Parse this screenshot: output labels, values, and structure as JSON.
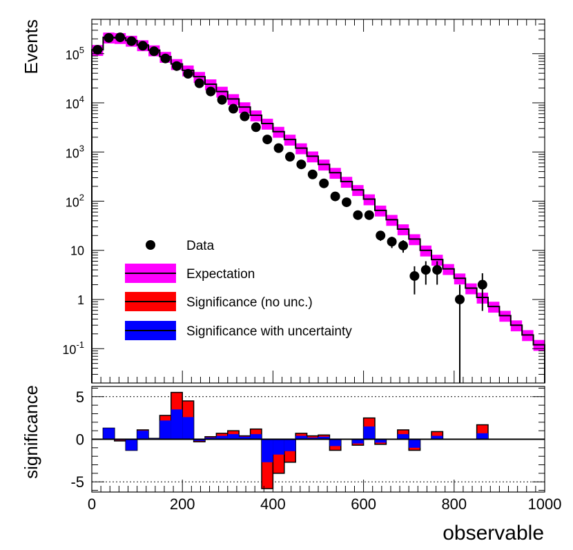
{
  "chart_data": [
    {
      "type": "bar",
      "panel": "main",
      "ylabel": "Events",
      "yscale": "log",
      "ylim": [
        0.02,
        500000
      ],
      "xlim": [
        0,
        1000
      ],
      "bin_width": 25,
      "bin_lows": [
        0,
        25,
        50,
        75,
        100,
        125,
        150,
        175,
        200,
        225,
        250,
        275,
        300,
        325,
        350,
        375,
        400,
        425,
        450,
        475,
        500,
        525,
        550,
        575,
        600,
        625,
        650,
        675,
        700,
        725,
        750,
        775,
        800,
        825,
        850,
        875,
        900,
        925,
        950,
        975
      ],
      "y_tick_labels": [
        "10^-1",
        "1",
        "10",
        "10^2",
        "10^3",
        "10^4",
        "10^5"
      ],
      "expectation": [
        120000,
        215000,
        210000,
        185000,
        150000,
        118000,
        87000,
        62000,
        46000,
        34000,
        24000,
        17000,
        12000,
        8200,
        5600,
        3800,
        2600,
        1800,
        1200,
        820,
        560,
        380,
        250,
        170,
        110,
        65,
        42,
        27,
        17,
        10,
        6.5,
        4.2,
        2.7,
        1.7,
        1.1,
        0.72,
        0.47,
        0.3,
        0.19,
        0.12
      ],
      "expectation_band_rel": 0.25,
      "data_bin_centers": [
        12.5,
        37.5,
        62.5,
        87.5,
        112.5,
        137.5,
        162.5,
        187.5,
        212.5,
        237.5,
        262.5,
        287.5,
        312.5,
        337.5,
        362.5,
        387.5,
        412.5,
        437.5,
        462.5,
        487.5,
        512.5,
        537.5,
        562.5,
        587.5,
        612.5,
        637.5,
        662.5,
        687.5,
        712.5,
        737.5,
        762.5,
        812.5,
        862.5
      ],
      "data_values": [
        120000,
        210000,
        215000,
        180000,
        145000,
        112000,
        80000,
        56000,
        39000,
        25000,
        17000,
        11500,
        7600,
        5300,
        3200,
        1800,
        1200,
        800,
        560,
        350,
        230,
        125,
        95,
        52,
        52,
        20,
        15,
        12.5,
        3,
        4,
        4,
        1,
        2
      ],
      "legend": [
        {
          "label": "Data",
          "swatch": "marker"
        },
        {
          "label": "Expectation",
          "swatch": "band",
          "color": "#ff00ff"
        },
        {
          "label": "Significance (no unc.)",
          "swatch": "band",
          "color": "#ff0000"
        },
        {
          "label": "Significance with uncertainty",
          "swatch": "band",
          "color": "#0000ff"
        }
      ]
    },
    {
      "type": "bar",
      "panel": "ratio",
      "ylabel": "significance",
      "xlabel": "observable",
      "ylim": [
        -6.2,
        6.2
      ],
      "xlim": [
        0,
        1000
      ],
      "x_tick_labels": [
        "0",
        "200",
        "400",
        "600",
        "800",
        "1000"
      ],
      "y_tick_labels": [
        "-5",
        "0",
        "5"
      ],
      "reference_lines": [
        -5,
        5
      ],
      "significance_no_unc": [
        0,
        1.3,
        -0.2,
        -1.3,
        1.1,
        0.1,
        2.8,
        5.5,
        4.5,
        -0.3,
        0.3,
        0.7,
        1.0,
        0.4,
        1.2,
        -5.8,
        -4.0,
        -2.7,
        0.7,
        0.4,
        0.5,
        -1.3,
        0,
        -0.7,
        2.5,
        -0.6,
        0,
        1.1,
        -1.3,
        0,
        0.9,
        0,
        0,
        0,
        1.7,
        0,
        0,
        0,
        0,
        0
      ],
      "significance_with_unc": [
        0,
        1.3,
        -0.1,
        -1.3,
        1.0,
        0.1,
        2.2,
        3.5,
        2.6,
        -0.2,
        0.2,
        0.4,
        0.6,
        0.3,
        0.6,
        -2.7,
        -1.8,
        -1.4,
        0.4,
        0.2,
        0.3,
        -0.8,
        0,
        -0.5,
        1.5,
        -0.4,
        0,
        0.6,
        -1.0,
        0,
        0.4,
        0,
        0,
        0,
        0.7,
        0,
        0,
        0,
        0,
        0
      ],
      "colors": {
        "no_unc": "#ff0000",
        "with_unc": "#0000ff"
      }
    }
  ]
}
